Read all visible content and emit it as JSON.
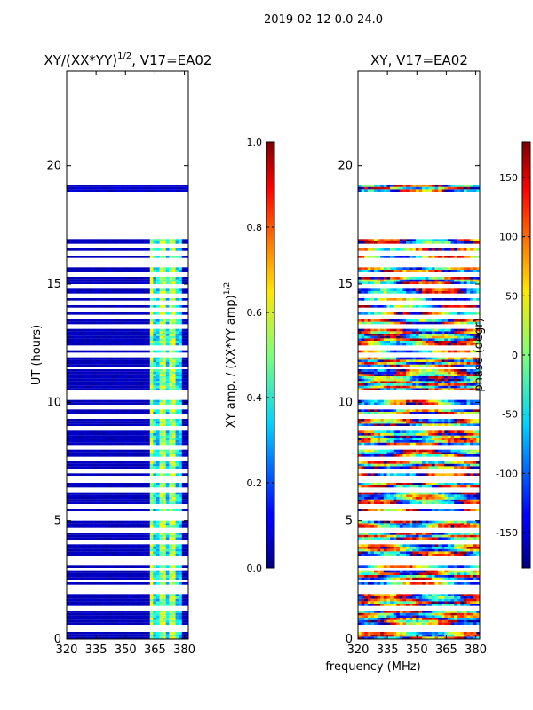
{
  "header": {
    "title": "2019-02-12 0.0-24.0"
  },
  "chart_data": [
    {
      "type": "heatmap",
      "title": "XY/(XX*YY)",
      "title_exponent": "1/2",
      "title_suffix": ", V17=EA02",
      "xlabel": "",
      "ylabel": "UT (hours)",
      "xlim": [
        320,
        382
      ],
      "ylim": [
        0,
        24
      ],
      "x_ticks": [
        "320",
        "335",
        "350",
        "365",
        "380"
      ],
      "y_ticks": [
        "0",
        "5",
        "10",
        "15",
        "20"
      ],
      "colorbar": {
        "label": "XY amp. / (XX*YY amp)",
        "label_exponent": "1/2",
        "range": [
          0.0,
          1.0
        ],
        "ticks": [
          "0.0",
          "0.2",
          "0.4",
          "0.6",
          "0.8",
          "1.0"
        ]
      },
      "data_hour_ranges": [
        [
          0.0,
          16.8
        ],
        [
          18.8,
          19.2
        ]
      ],
      "gap_rows_hours": [
        0.3,
        0.45,
        1.25,
        1.95,
        2.1,
        2.2,
        2.4,
        2.9,
        3.15,
        3.35,
        4.05,
        4.55,
        5.05,
        5.25,
        5.55,
        6.25,
        6.65,
        6.8,
        7.05,
        7.55,
        8.05,
        8.85,
        9.35,
        9.75,
        10.15,
        10.35,
        11.4,
        11.95,
        12.25,
        13.15,
        13.55,
        13.85,
        14.15,
        14.45,
        14.85,
        15.35,
        15.75,
        15.95,
        16.25,
        16.55
      ]
    },
    {
      "type": "heatmap",
      "title": "XY, V17=EA02",
      "xlabel": "frequency (MHz)",
      "ylabel": "",
      "xlim": [
        320,
        382
      ],
      "ylim": [
        0,
        24
      ],
      "x_ticks": [
        "320",
        "335",
        "350",
        "365",
        "380"
      ],
      "y_ticks": [
        "0",
        "5",
        "10",
        "15",
        "20"
      ],
      "colorbar": {
        "label": "phase (degr)",
        "range": [
          -180,
          180
        ],
        "ticks": [
          "-150",
          "-100",
          "-50",
          "0",
          "50",
          "100",
          "150"
        ]
      },
      "data_hour_ranges": [
        [
          0.0,
          16.8
        ],
        [
          18.8,
          19.2
        ]
      ]
    }
  ]
}
